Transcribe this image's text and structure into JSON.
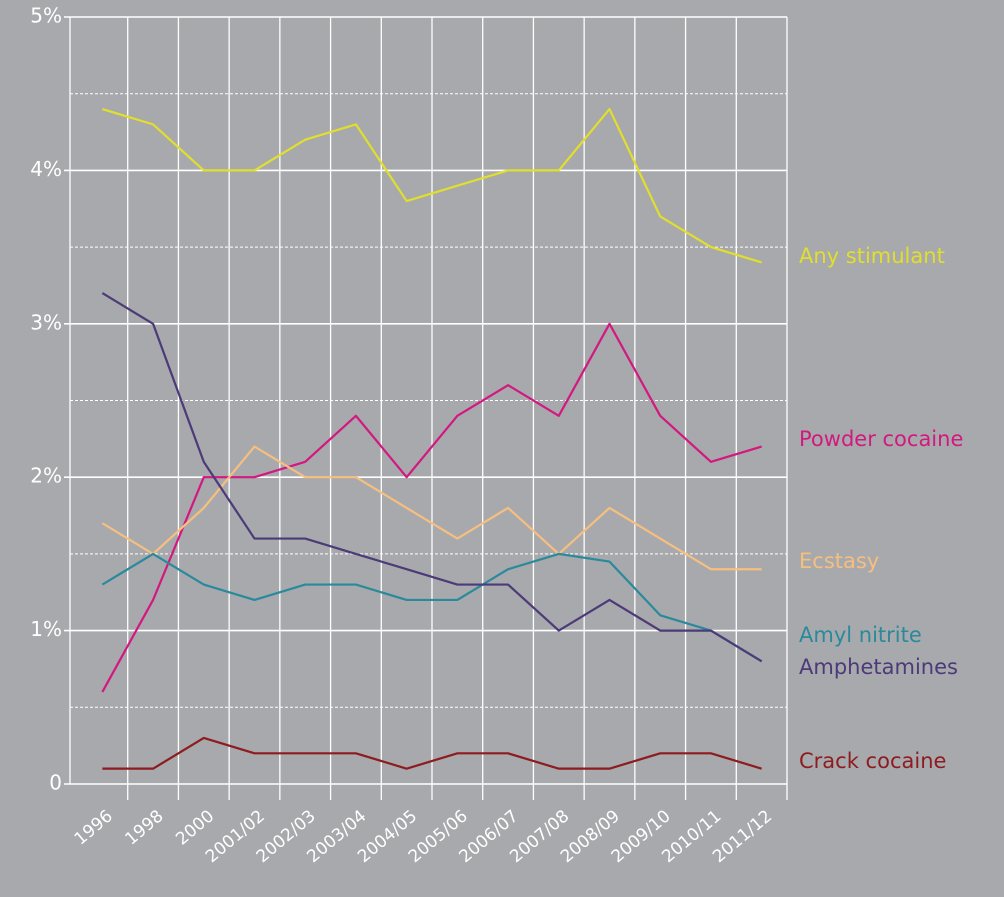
{
  "chart_data": {
    "type": "line",
    "categories": [
      "1996",
      "1998",
      "2000",
      "2001/02",
      "2002/03",
      "2003/04",
      "2004/05",
      "2005/06",
      "2006/07",
      "2007/08",
      "2008/09",
      "2009/10",
      "2010/11",
      "2011/12"
    ],
    "series": [
      {
        "name": "Any stimulant",
        "color": "#e2df2c",
        "values": [
          4.4,
          4.3,
          4.0,
          4.0,
          4.2,
          4.3,
          3.8,
          3.9,
          4.0,
          4.0,
          4.4,
          3.7,
          3.5,
          3.4
        ]
      },
      {
        "name": "Powder cocaine",
        "color": "#d3187f",
        "values": [
          0.6,
          1.2,
          2.0,
          2.0,
          2.1,
          2.4,
          2.0,
          2.4,
          2.6,
          2.4,
          3.0,
          2.4,
          2.1,
          2.2
        ]
      },
      {
        "name": "Ecstasy",
        "color": "#f6bf80",
        "values": [
          1.7,
          1.5,
          1.8,
          2.2,
          2.0,
          2.0,
          1.8,
          1.6,
          1.8,
          1.5,
          1.8,
          1.6,
          1.4,
          1.4
        ]
      },
      {
        "name": "Amyl nitrite",
        "color": "#2a8a9c",
        "values": [
          1.3,
          1.5,
          1.3,
          1.2,
          1.3,
          1.3,
          1.2,
          1.2,
          1.4,
          1.5,
          1.45,
          1.1,
          1.0,
          0.8
        ]
      },
      {
        "name": "Amphetamines",
        "color": "#4d3a78",
        "values": [
          3.2,
          3.0,
          2.1,
          1.6,
          1.6,
          1.5,
          1.4,
          1.3,
          1.3,
          1.0,
          1.2,
          1.0,
          1.0,
          0.8
        ]
      },
      {
        "name": "Crack cocaine",
        "color": "#8e1b1f",
        "values": [
          0.1,
          0.1,
          0.3,
          0.2,
          0.2,
          0.2,
          0.1,
          0.2,
          0.2,
          0.1,
          0.1,
          0.2,
          0.2,
          0.1
        ]
      }
    ],
    "ylim": [
      0,
      5
    ],
    "yticks": [
      0,
      {
        "value": 1,
        "label": "1%"
      },
      {
        "value": 2,
        "label": "2%"
      },
      {
        "value": 3,
        "label": "3%"
      },
      {
        "value": 4,
        "label": "4%"
      },
      {
        "value": 5,
        "label": "5%"
      }
    ],
    "minor_yticks": [
      0.5,
      1.5,
      2.5,
      3.5,
      4.5
    ],
    "grid": true
  }
}
